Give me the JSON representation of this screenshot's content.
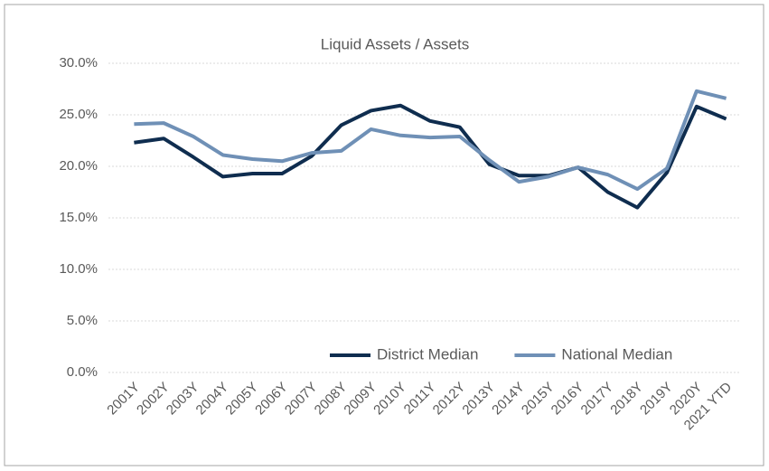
{
  "chart_data": {
    "type": "line",
    "title": "Liquid Assets / Assets",
    "categories": [
      "2001Y",
      "2002Y",
      "2003Y",
      "2004Y",
      "2005Y",
      "2006Y",
      "2007Y",
      "2008Y",
      "2009Y",
      "2010Y",
      "2011Y",
      "2012Y",
      "2013Y",
      "2014Y",
      "2015Y",
      "2016Y",
      "2017Y",
      "2018Y",
      "2019Y",
      "2020Y",
      "2021 YTD"
    ],
    "series": [
      {
        "name": "District Median",
        "color": "#0f2d4f",
        "values": [
          22.3,
          22.7,
          20.9,
          19.0,
          19.3,
          19.3,
          21.0,
          24.0,
          25.4,
          25.9,
          24.4,
          23.8,
          20.2,
          19.1,
          19.1,
          19.9,
          17.5,
          16.0,
          19.4,
          25.8,
          24.6
        ]
      },
      {
        "name": "National Median",
        "color": "#6f90b6",
        "values": [
          24.1,
          24.2,
          22.9,
          21.1,
          20.7,
          20.5,
          21.3,
          21.5,
          23.6,
          23.0,
          22.8,
          22.9,
          20.6,
          18.5,
          19.0,
          19.9,
          19.2,
          17.8,
          19.8,
          27.3,
          26.6
        ]
      }
    ],
    "ylim": [
      0,
      30
    ],
    "yticks": [
      {
        "value": 0,
        "label": "0.0%"
      },
      {
        "value": 5,
        "label": "5.0%"
      },
      {
        "value": 10,
        "label": "10.0%"
      },
      {
        "value": 15,
        "label": "15.0%"
      },
      {
        "value": 20,
        "label": "20.0%"
      },
      {
        "value": 25,
        "label": "25.0%"
      },
      {
        "value": 30,
        "label": "30.0%"
      }
    ],
    "grid": true,
    "legend": "bottom-right"
  }
}
